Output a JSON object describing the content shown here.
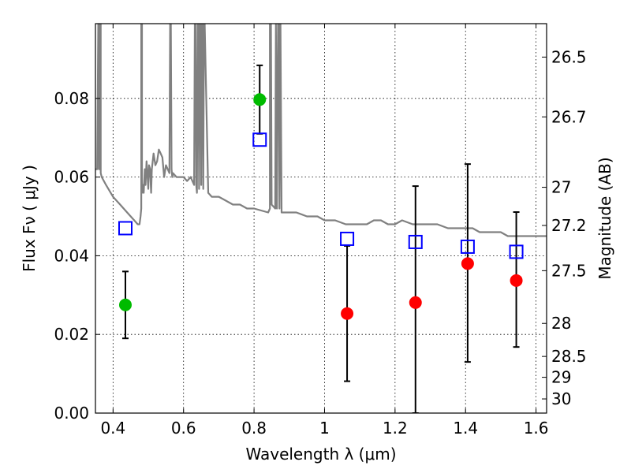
{
  "chart_data": {
    "type": "scatter",
    "title": "",
    "xlabel": "Wavelength  λ (μm)",
    "ylabel": "Flux  Fν  ( μJy )",
    "ylabel_right": "Magnitude (AB)",
    "xlim": [
      0.35,
      1.63
    ],
    "ylim": [
      0.0,
      0.099
    ],
    "grid": true,
    "x_ticks": [
      0.4,
      0.6,
      0.8,
      1.0,
      1.2,
      1.4,
      1.6
    ],
    "x_tick_labels": [
      "0.4",
      "0.6",
      "0.8",
      "1",
      "1.2",
      "1.4",
      "1.6"
    ],
    "y_ticks": [
      0.0,
      0.02,
      0.04,
      0.06,
      0.08
    ],
    "y_tick_labels": [
      "0.00",
      "0.02",
      "0.04",
      "0.06",
      "0.08"
    ],
    "y2_ticks": [
      {
        "flux": 0.0905,
        "label": "26.5"
      },
      {
        "flux": 0.0753,
        "label": "26.7"
      },
      {
        "flux": 0.0574,
        "label": "27"
      },
      {
        "flux": 0.0477,
        "label": "27.2"
      },
      {
        "flux": 0.0362,
        "label": "27.5"
      },
      {
        "flux": 0.0228,
        "label": "28"
      },
      {
        "flux": 0.0144,
        "label": "28.5"
      },
      {
        "flux": 0.0091,
        "label": "29"
      },
      {
        "flux": 0.0036,
        "label": "30"
      }
    ],
    "series": [
      {
        "kind": "model_spectrum",
        "color": "#808080",
        "x": [
          0.35,
          0.355,
          0.358,
          0.36,
          0.36,
          0.362,
          0.362,
          0.365,
          0.365,
          0.368,
          0.38,
          0.4,
          0.42,
          0.44,
          0.45,
          0.46,
          0.47,
          0.475,
          0.478,
          0.48,
          0.48,
          0.482,
          0.482,
          0.485,
          0.487,
          0.49,
          0.492,
          0.495,
          0.498,
          0.5,
          0.502,
          0.505,
          0.508,
          0.51,
          0.515,
          0.52,
          0.525,
          0.53,
          0.535,
          0.54,
          0.545,
          0.55,
          0.555,
          0.56,
          0.562,
          0.564,
          0.566,
          0.568,
          0.57,
          0.58,
          0.59,
          0.6,
          0.61,
          0.62,
          0.63,
          0.632,
          0.634,
          0.636,
          0.638,
          0.64,
          0.642,
          0.644,
          0.646,
          0.648,
          0.65,
          0.652,
          0.654,
          0.656,
          0.658,
          0.66,
          0.67,
          0.68,
          0.7,
          0.72,
          0.74,
          0.76,
          0.78,
          0.8,
          0.84,
          0.845,
          0.845,
          0.848,
          0.85,
          0.86,
          0.862,
          0.862,
          0.865,
          0.868,
          0.87,
          0.872,
          0.875,
          0.875,
          0.878,
          0.88,
          0.9,
          0.92,
          0.95,
          0.98,
          1.0,
          1.03,
          1.06,
          1.09,
          1.12,
          1.14,
          1.16,
          1.18,
          1.2,
          1.22,
          1.25,
          1.28,
          1.3,
          1.32,
          1.35,
          1.38,
          1.4,
          1.42,
          1.44,
          1.46,
          1.48,
          1.5,
          1.52,
          1.55,
          1.58,
          1.6,
          1.63
        ],
        "y": [
          0.062,
          0.062,
          0.099,
          0.099,
          0.062,
          0.062,
          0.099,
          0.099,
          0.061,
          0.06,
          0.058,
          0.055,
          0.053,
          0.051,
          0.05,
          0.049,
          0.048,
          0.048,
          0.05,
          0.052,
          0.099,
          0.099,
          0.056,
          0.058,
          0.056,
          0.062,
          0.058,
          0.064,
          0.06,
          0.057,
          0.063,
          0.062,
          0.056,
          0.062,
          0.066,
          0.063,
          0.064,
          0.067,
          0.066,
          0.065,
          0.06,
          0.063,
          0.062,
          0.061,
          0.099,
          0.099,
          0.062,
          0.06,
          0.061,
          0.06,
          0.06,
          0.06,
          0.059,
          0.06,
          0.058,
          0.099,
          0.099,
          0.058,
          0.056,
          0.099,
          0.099,
          0.057,
          0.099,
          0.099,
          0.058,
          0.099,
          0.099,
          0.057,
          0.099,
          0.099,
          0.056,
          0.055,
          0.055,
          0.054,
          0.053,
          0.053,
          0.052,
          0.052,
          0.051,
          0.052,
          0.099,
          0.099,
          0.053,
          0.052,
          0.099,
          0.099,
          0.052,
          0.099,
          0.099,
          0.052,
          0.099,
          0.099,
          0.051,
          0.051,
          0.051,
          0.051,
          0.05,
          0.05,
          0.049,
          0.049,
          0.048,
          0.048,
          0.048,
          0.049,
          0.049,
          0.048,
          0.048,
          0.049,
          0.048,
          0.048,
          0.048,
          0.048,
          0.047,
          0.047,
          0.047,
          0.047,
          0.046,
          0.046,
          0.046,
          0.046,
          0.045,
          0.045,
          0.045,
          0.045,
          0.045
        ]
      },
      {
        "kind": "model_points",
        "color": "#0000ff",
        "marker": "open-square",
        "x": [
          0.435,
          0.816,
          1.064,
          1.258,
          1.406,
          1.544
        ],
        "y": [
          0.047,
          0.0695,
          0.0443,
          0.0435,
          0.0423,
          0.041
        ]
      },
      {
        "kind": "detections",
        "color": "#00bb00",
        "marker": "circle",
        "x": [
          0.435,
          0.816
        ],
        "y": [
          0.0275,
          0.0797
        ],
        "yerr_low": [
          0.0085,
          0.0087
        ],
        "yerr_high": [
          0.0085,
          0.0087
        ]
      },
      {
        "kind": "measurements",
        "color": "#ff0000",
        "marker": "circle",
        "x": [
          1.064,
          1.258,
          1.406,
          1.544
        ],
        "y": [
          0.0253,
          0.0281,
          0.038,
          0.0337
        ],
        "yerr_low": [
          0.0172,
          0.0281,
          0.025,
          0.0169
        ],
        "yerr_high": [
          0.0172,
          0.0296,
          0.0253,
          0.0174
        ]
      }
    ]
  }
}
